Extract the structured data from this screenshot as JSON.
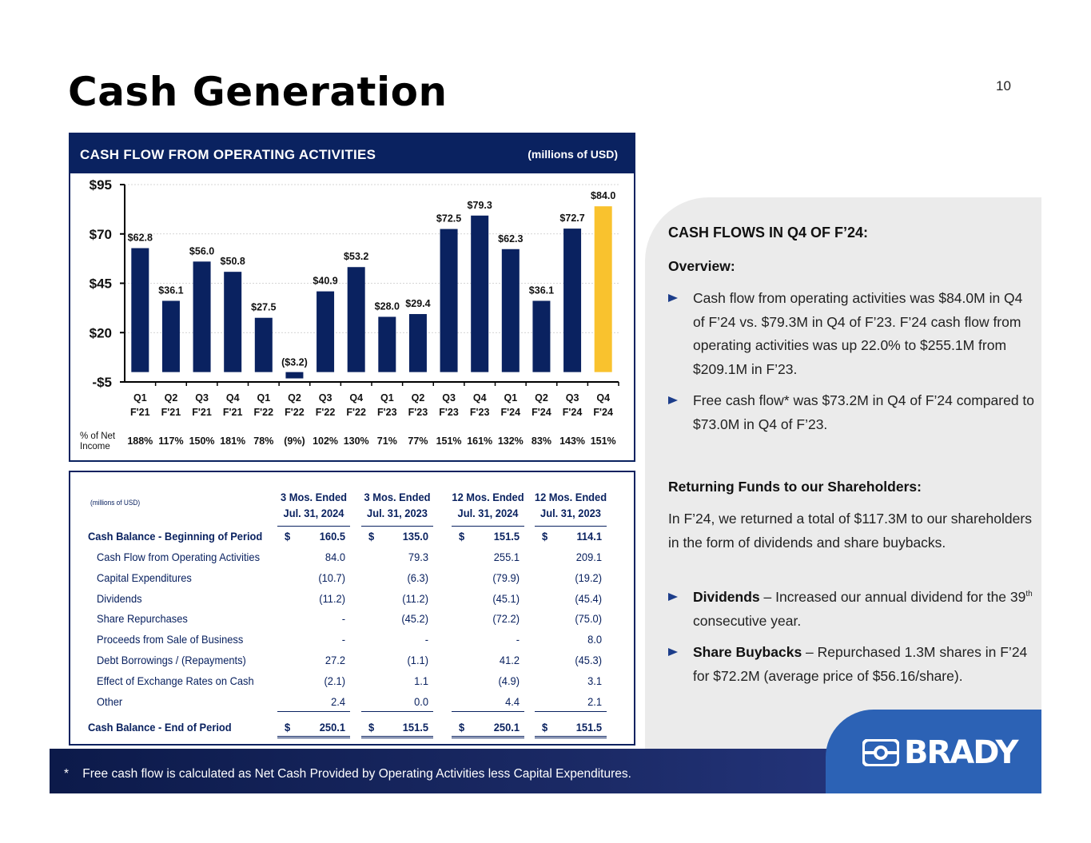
{
  "page": {
    "title": "Cash Generation",
    "page_number": "10"
  },
  "chart_panel": {
    "title": "CASH FLOW FROM OPERATING ACTIVITIES",
    "unit": "(millions of USD)",
    "pct_label_line1": "% of Net",
    "pct_label_line2": "Income"
  },
  "chart_data": {
    "type": "bar",
    "title": "CASH FLOW FROM OPERATING ACTIVITIES",
    "unit": "(millions of USD)",
    "categories": [
      [
        "Q1",
        "F'21"
      ],
      [
        "Q2",
        "F'21"
      ],
      [
        "Q3",
        "F'21"
      ],
      [
        "Q4",
        "F'21"
      ],
      [
        "Q1",
        "F'22"
      ],
      [
        "Q2",
        "F'22"
      ],
      [
        "Q3",
        "F'22"
      ],
      [
        "Q4",
        "F'22"
      ],
      [
        "Q1",
        "F'23"
      ],
      [
        "Q2",
        "F'23"
      ],
      [
        "Q3",
        "F'23"
      ],
      [
        "Q4",
        "F'23"
      ],
      [
        "Q1",
        "F'24"
      ],
      [
        "Q2",
        "F'24"
      ],
      [
        "Q3",
        "F'24"
      ],
      [
        "Q4",
        "F'24"
      ]
    ],
    "values": [
      62.8,
      36.1,
      56.0,
      50.8,
      27.5,
      -3.2,
      40.9,
      53.2,
      28.0,
      29.4,
      72.5,
      79.3,
      62.3,
      36.1,
      72.7,
      84.0
    ],
    "value_labels": [
      "$62.8",
      "$36.1",
      "$56.0",
      "$50.8",
      "$27.5",
      "($3.2)",
      "$40.9",
      "$53.2",
      "$28.0",
      "$29.4",
      "$72.5",
      "$79.3",
      "$62.3",
      "$36.1",
      "$72.7",
      "$84.0"
    ],
    "pct_of_net_income": [
      "188%",
      "117%",
      "150%",
      "181%",
      "78%",
      "(9%)",
      "102%",
      "130%",
      "71%",
      "77%",
      "151%",
      "161%",
      "132%",
      "83%",
      "143%",
      "151%"
    ],
    "y_ticks": [
      "$95",
      "$70",
      "$45",
      "$20",
      "-$5"
    ],
    "y_tick_values": [
      95,
      70,
      45,
      20,
      -5
    ],
    "ylim": [
      -5,
      95
    ],
    "colors": {
      "bar": "#0a2260",
      "highlight": "#f9c22e",
      "grid": "#c8c8c8"
    },
    "highlight_index": 15,
    "grid": true
  },
  "table": {
    "unit_note": "(millions of USD)",
    "col_headers": [
      {
        "line1": "3 Mos. Ended",
        "line2": "Jul. 31, 2024"
      },
      {
        "line1": "3 Mos. Ended",
        "line2": "Jul. 31, 2023"
      },
      {
        "line1": "12 Mos. Ended",
        "line2": "Jul. 31, 2024"
      },
      {
        "line1": "12 Mos. Ended",
        "line2": "Jul. 31, 2023"
      }
    ],
    "currency_symbol": "$",
    "begin_row": {
      "label": "Cash Balance - Beginning of Period",
      "values": [
        "160.5",
        "135.0",
        "151.5",
        "114.1"
      ]
    },
    "rows": [
      {
        "label": "Cash Flow from Operating Activities",
        "values": [
          "84.0",
          "79.3",
          "255.1",
          "209.1"
        ]
      },
      {
        "label": "Capital Expenditures",
        "values": [
          "(10.7)",
          "(6.3)",
          "(79.9)",
          "(19.2)"
        ]
      },
      {
        "label": "Dividends",
        "values": [
          "(11.2)",
          "(11.2)",
          "(45.1)",
          "(45.4)"
        ]
      },
      {
        "label": "Share Repurchases",
        "values": [
          "-",
          "(45.2)",
          "(72.2)",
          "(75.0)"
        ]
      },
      {
        "label": "Proceeds from Sale of Business",
        "values": [
          "-",
          "-",
          "-",
          "8.0"
        ]
      },
      {
        "label": "Debt Borrowings / (Repayments)",
        "values": [
          "27.2",
          "(1.1)",
          "41.2",
          "(45.3)"
        ]
      },
      {
        "label": "Effect of Exchange Rates on Cash",
        "values": [
          "(2.1)",
          "1.1",
          "(4.9)",
          "3.1"
        ]
      },
      {
        "label": "Other",
        "values": [
          "2.4",
          "0.0",
          "4.4",
          "2.1"
        ]
      }
    ],
    "end_row": {
      "label": "Cash Balance - End of Period",
      "values": [
        "250.1",
        "151.5",
        "250.1",
        "151.5"
      ]
    }
  },
  "right_panel": {
    "title": "CASH FLOWS IN Q4 OF F’24:",
    "overview_label": "Overview:",
    "bullet1": "Cash flow from operating activities was $84.0M in Q4 of F’24 vs. $79.3M in Q4 of F’23.  F’24 cash flow from operating activities was up 22.0% to $255.1M from $209.1M in F’23.",
    "bullet2": "Free cash flow* was $73.2M in Q4 of F’24 compared to $73.0M in Q4 of F’23.",
    "returning_label": "Returning Funds to our Shareholders:",
    "returning_text": "In F’24, we returned a total of $117.3M to our shareholders in the form of dividends and share buybacks.",
    "bullet3_bold": "Dividends",
    "bullet3_pre": " – Increased our annual dividend for the 39",
    "bullet3_sup": "th",
    "bullet3_post": " consecutive year.",
    "bullet4_bold": "Share Buybacks",
    "bullet4_text": " – Repurchased 1.3M shares in F’24 for $72.2M (average price of $56.16/share)."
  },
  "footer": {
    "asterisk": "*",
    "note": "Free cash flow is calculated as Net Cash Provided by Operating Activities less Capital Expenditures.",
    "logo_text": "BRADY"
  }
}
